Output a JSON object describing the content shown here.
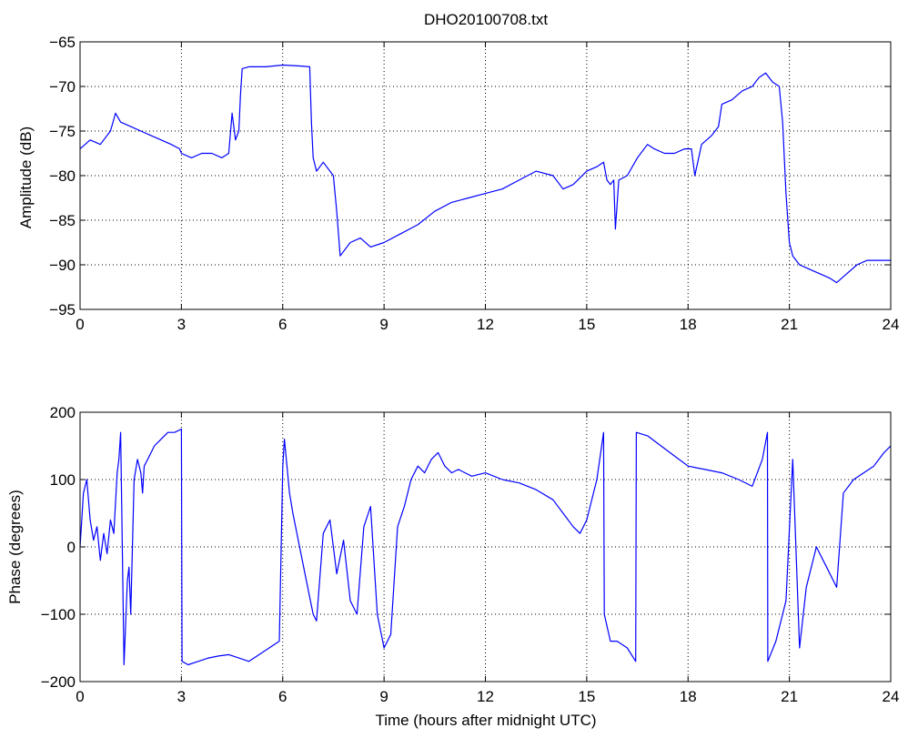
{
  "chart_data": [
    {
      "type": "line",
      "title": "DHO20100708.txt",
      "xlabel": "",
      "ylabel": "Amplitude (dB)",
      "xlim": [
        0,
        24
      ],
      "ylim": [
        -95,
        -65
      ],
      "xticks": [
        0,
        3,
        6,
        9,
        12,
        15,
        18,
        21,
        24
      ],
      "yticks": [
        -65,
        -70,
        -75,
        -80,
        -85,
        -90,
        -95
      ],
      "grid": true,
      "color": "#0000ff",
      "series": [
        {
          "x": [
            0,
            0.3,
            0.6,
            0.9,
            1.05,
            1.2,
            1.5,
            1.8,
            2.1,
            2.4,
            2.7,
            2.95,
            3.0,
            3.3,
            3.6,
            3.9,
            4.2,
            4.4,
            4.5,
            4.6,
            4.7,
            4.75,
            4.8,
            5.0,
            5.5,
            6.0,
            6.5,
            6.8,
            6.85,
            6.9,
            7.0,
            7.2,
            7.5,
            7.6,
            7.7,
            7.8,
            8.0,
            8.3,
            8.6,
            9.0,
            9.5,
            10.0,
            10.5,
            11.0,
            11.5,
            12.0,
            12.5,
            13.0,
            13.5,
            14.0,
            14.3,
            14.6,
            15.0,
            15.3,
            15.5,
            15.6,
            15.7,
            15.8,
            15.85,
            15.95,
            16.2,
            16.5,
            16.8,
            17.0,
            17.3,
            17.6,
            17.9,
            18.1,
            18.2,
            18.4,
            18.7,
            18.9,
            19.0,
            19.3,
            19.6,
            19.9,
            20.1,
            20.3,
            20.5,
            20.7,
            20.8,
            20.9,
            21.0,
            21.1,
            21.3,
            21.6,
            21.9,
            22.2,
            22.4,
            22.7,
            23.0,
            23.3,
            23.6,
            24.0
          ],
          "y": [
            -77,
            -76,
            -76.5,
            -75,
            -73,
            -74,
            -74.5,
            -75,
            -75.5,
            -76,
            -76.5,
            -77,
            -77.5,
            -78,
            -77.5,
            -77.5,
            -78,
            -77.5,
            -73,
            -76,
            -75,
            -71,
            -68,
            -67.8,
            -67.8,
            -67.6,
            -67.7,
            -67.8,
            -74,
            -78,
            -79.5,
            -78.5,
            -80,
            -84,
            -89,
            -88.5,
            -87.5,
            -87,
            -88,
            -87.5,
            -86.5,
            -85.5,
            -84,
            -83,
            -82.5,
            -82,
            -81.5,
            -80.5,
            -79.5,
            -80,
            -81.5,
            -81,
            -79.5,
            -79,
            -78.5,
            -80.5,
            -81,
            -80.5,
            -86,
            -80.5,
            -80,
            -78,
            -76.5,
            -77,
            -77.5,
            -77.5,
            -77,
            -77,
            -80,
            -76.5,
            -75.5,
            -74.5,
            -72,
            -71.5,
            -70.5,
            -70,
            -69,
            -68.5,
            -69.5,
            -70,
            -74,
            -82,
            -87.5,
            -89,
            -90,
            -90.5,
            -91,
            -91.5,
            -92,
            -91,
            -90,
            -89.5,
            -89.5,
            -89.5
          ]
        }
      ]
    },
    {
      "type": "line",
      "title": "",
      "xlabel": "Time (hours after midnight UTC)",
      "ylabel": "Phase (degrees)",
      "xlim": [
        0,
        24
      ],
      "ylim": [
        -200,
        200
      ],
      "xticks": [
        0,
        3,
        6,
        9,
        12,
        15,
        18,
        21,
        24
      ],
      "yticks": [
        200,
        100,
        0,
        -100,
        -200
      ],
      "grid": true,
      "color": "#0000ff",
      "series": [
        {
          "x": [
            0,
            0.1,
            0.2,
            0.3,
            0.4,
            0.5,
            0.6,
            0.7,
            0.8,
            0.9,
            1.0,
            1.1,
            1.15,
            1.2,
            1.3,
            1.4,
            1.45,
            1.5,
            1.6,
            1.7,
            1.8,
            1.85,
            1.9,
            2.0,
            2.2,
            2.4,
            2.6,
            2.8,
            3.0,
            3.02,
            3.2,
            3.5,
            3.8,
            4.1,
            4.4,
            4.7,
            5.0,
            5.3,
            5.6,
            5.9,
            6.0,
            6.05,
            6.2,
            6.3,
            6.5,
            6.7,
            6.9,
            7.0,
            7.2,
            7.4,
            7.6,
            7.8,
            8.0,
            8.2,
            8.4,
            8.6,
            8.8,
            9.0,
            9.2,
            9.4,
            9.6,
            9.8,
            10.0,
            10.2,
            10.4,
            10.6,
            10.8,
            11.0,
            11.2,
            11.4,
            11.6,
            12.0,
            12.5,
            13.0,
            13.5,
            14.0,
            14.3,
            14.6,
            14.8,
            15.0,
            15.3,
            15.5,
            15.52,
            15.7,
            15.9,
            16.2,
            16.45,
            16.47,
            16.8,
            17.2,
            17.6,
            18.0,
            18.5,
            19.0,
            19.5,
            19.9,
            20.2,
            20.35,
            20.36,
            20.6,
            20.9,
            21.1,
            21.3,
            21.5,
            21.8,
            22.1,
            22.4,
            22.6,
            22.9,
            23.2,
            23.5,
            23.8,
            24.0
          ],
          "y": [
            0,
            80,
            100,
            40,
            10,
            30,
            -20,
            20,
            -10,
            40,
            20,
            110,
            130,
            170,
            -175,
            -50,
            -30,
            -100,
            100,
            130,
            110,
            80,
            120,
            130,
            150,
            160,
            170,
            170,
            175,
            -170,
            -175,
            -170,
            -165,
            -162,
            -160,
            -165,
            -170,
            -160,
            -150,
            -140,
            120,
            160,
            80,
            50,
            0,
            -50,
            -100,
            -110,
            20,
            40,
            -40,
            10,
            -80,
            -100,
            30,
            60,
            -100,
            -150,
            -130,
            30,
            60,
            100,
            120,
            110,
            130,
            140,
            120,
            110,
            115,
            110,
            105,
            110,
            100,
            95,
            85,
            70,
            50,
            30,
            20,
            40,
            100,
            170,
            -100,
            -140,
            -140,
            -150,
            -170,
            170,
            165,
            150,
            135,
            120,
            115,
            110,
            100,
            90,
            130,
            170,
            -170,
            -140,
            -80,
            130,
            -150,
            -60,
            0,
            -30,
            -60,
            80,
            100,
            110,
            120,
            140,
            150
          ]
        }
      ]
    }
  ]
}
